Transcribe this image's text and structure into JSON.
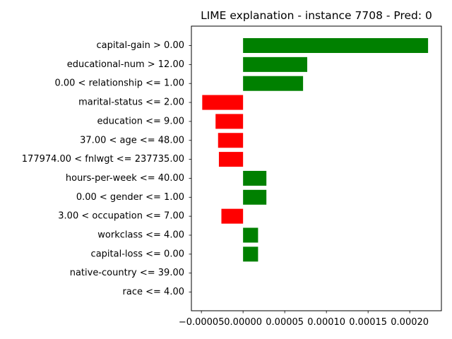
{
  "chart_data": {
    "type": "bar",
    "orientation": "horizontal",
    "title": "LIME explanation - instance 7708 - Pred: 0",
    "xlabel": "",
    "ylabel": "",
    "xlim": [
      -6.2e-05,
      0.000238
    ],
    "x_ticks": [
      -5e-05,
      0.0,
      5e-05,
      0.0001,
      0.00015,
      0.0002
    ],
    "x_tick_labels": [
      "−0.00005",
      "0.00000",
      "0.00005",
      "0.00010",
      "0.00015",
      "0.00020"
    ],
    "grid": false,
    "legend": "none",
    "colors": {
      "positive": "#008000",
      "negative": "#ff0000"
    },
    "categories": [
      "capital-gain > 0.00",
      "educational-num > 12.00",
      "0.00 < relationship <= 1.00",
      "marital-status <= 2.00",
      "education <= 9.00",
      "37.00 < age <= 48.00",
      "177974.00 < fnlwgt <= 237735.00",
      "hours-per-week <= 40.00",
      "0.00 < gender <= 1.00",
      "3.00 < occupation <= 7.00",
      "workclass <= 4.00",
      "capital-loss <= 0.00",
      "native-country <= 39.00",
      "race <= 4.00"
    ],
    "values": [
      0.000222,
      7.7e-05,
      7.2e-05,
      -4.9e-05,
      -3.3e-05,
      -3e-05,
      -2.9e-05,
      2.8e-05,
      2.8e-05,
      -2.6e-05,
      1.8e-05,
      1.8e-05,
      0.0,
      0.0
    ]
  }
}
